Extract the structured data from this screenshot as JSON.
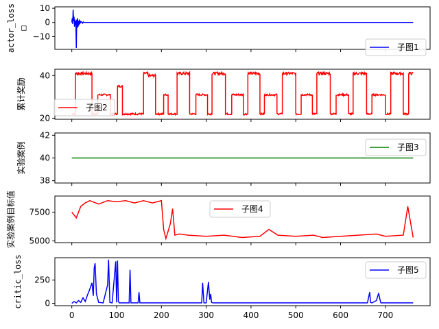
{
  "chart_data": [
    {
      "type": "line",
      "ylabel": "actor_loss\n□",
      "xlim": [
        -37.8,
        799.8
      ],
      "ylim": [
        -19,
        11
      ],
      "yticks": [
        10,
        0,
        -10
      ],
      "ytick_labels": [
        "10",
        "0",
        "−10"
      ],
      "xticks": [
        0,
        100,
        200,
        300,
        400,
        500,
        600,
        700
      ],
      "xtick_labels": [
        "0",
        "100",
        "200",
        "300",
        "400",
        "500",
        "600",
        "700"
      ],
      "legend_location": "lower right",
      "grid": false,
      "series": [
        {
          "name": "子图1",
          "color": "#0000ff",
          "x": [
            0,
            1,
            2,
            3,
            4,
            5,
            6,
            7,
            8,
            9,
            10,
            11,
            12,
            13,
            14,
            15,
            16,
            17,
            18,
            19,
            20,
            22,
            24,
            26,
            28,
            30,
            40,
            60,
            100,
            200,
            300,
            400,
            500,
            600,
            700,
            762
          ],
          "y": [
            0,
            3,
            -1,
            9,
            1,
            4,
            -3,
            2,
            -2,
            1,
            -18,
            2,
            -4,
            3,
            -3,
            1,
            -2,
            2,
            -1,
            1,
            0,
            0.5,
            -0.5,
            0.3,
            0,
            0,
            0,
            0,
            0,
            0,
            0,
            0,
            0,
            0,
            0,
            0
          ]
        }
      ]
    },
    {
      "type": "line",
      "ylabel": "累计奖励",
      "xlim": [
        -37.8,
        799.8
      ],
      "ylim": [
        19.5,
        43
      ],
      "yticks": [
        40,
        20
      ],
      "ytick_labels": [
        "40",
        "20"
      ],
      "xticks": [
        0,
        100,
        200,
        300,
        400,
        500,
        600,
        700
      ],
      "legend_location": "center left",
      "grid": false,
      "series": [
        {
          "name": "子图2",
          "color": "#ff0000",
          "regimes": [
            [
              0,
              8,
              22
            ],
            [
              8,
              45,
              41
            ],
            [
              45,
              58,
              22
            ],
            [
              58,
              86,
              31
            ],
            [
              86,
              102,
              22
            ],
            [
              102,
              113,
              35
            ],
            [
              113,
              120,
              22
            ],
            [
              120,
              160,
              22
            ],
            [
              160,
              170,
              41
            ],
            [
              170,
              187,
              40
            ],
            [
              187,
              205,
              22
            ],
            [
              205,
              215,
              31
            ],
            [
              215,
              235,
              22
            ],
            [
              235,
              263,
              41
            ],
            [
              263,
              277,
              22
            ],
            [
              277,
              303,
              31
            ],
            [
              303,
              313,
              22
            ],
            [
              313,
              343,
              41
            ],
            [
              343,
              357,
              22
            ],
            [
              357,
              383,
              31
            ],
            [
              383,
              393,
              22
            ],
            [
              393,
              420,
              41
            ],
            [
              420,
              430,
              22
            ],
            [
              430,
              458,
              31
            ],
            [
              458,
              470,
              22
            ],
            [
              470,
              500,
              41
            ],
            [
              500,
              512,
              22
            ],
            [
              512,
              537,
              31
            ],
            [
              537,
              547,
              22
            ],
            [
              547,
              577,
              41
            ],
            [
              577,
              590,
              22
            ],
            [
              590,
              618,
              31
            ],
            [
              618,
              628,
              22
            ],
            [
              628,
              658,
              41
            ],
            [
              658,
              670,
              22
            ],
            [
              670,
              700,
              31
            ],
            [
              700,
              712,
              22
            ],
            [
              712,
              740,
              41
            ],
            [
              740,
              752,
              22
            ],
            [
              752,
              762,
              41
            ]
          ]
        }
      ]
    },
    {
      "type": "line",
      "ylabel": "实验案例",
      "xlim": [
        -37.8,
        799.8
      ],
      "ylim": [
        37.8,
        42.2
      ],
      "yticks": [
        42,
        40,
        38
      ],
      "ytick_labels": [
        "42",
        "40",
        "38"
      ],
      "xticks": [
        0,
        100,
        200,
        300,
        400,
        500,
        600,
        700
      ],
      "legend_location": "upper right",
      "grid": false,
      "series": [
        {
          "name": "子图3",
          "color": "#008000",
          "x": [
            0,
            762
          ],
          "y": [
            40,
            40
          ]
        }
      ]
    },
    {
      "type": "line",
      "ylabel": "实验案例目标值",
      "xlim": [
        -37.8,
        799.8
      ],
      "ylim": [
        4850,
        8900
      ],
      "yticks": [
        7500,
        5000
      ],
      "ytick_labels": [
        "7500",
        "5000"
      ],
      "xticks": [
        0,
        100,
        200,
        300,
        400,
        500,
        600,
        700
      ],
      "legend_location": "upper center",
      "grid": false,
      "series": [
        {
          "name": "子图4",
          "color": "#ff0000",
          "x": [
            0,
            10,
            20,
            30,
            40,
            60,
            80,
            100,
            120,
            140,
            160,
            180,
            200,
            205,
            210,
            220,
            225,
            230,
            240,
            260,
            300,
            340,
            380,
            420,
            440,
            460,
            500,
            540,
            560,
            600,
            640,
            680,
            700,
            740,
            750,
            762
          ],
          "y": [
            7500,
            7000,
            8000,
            8300,
            8500,
            8200,
            8500,
            8400,
            8500,
            8300,
            8500,
            8300,
            8500,
            6000,
            5200,
            6500,
            7800,
            5500,
            5600,
            5500,
            5400,
            5500,
            5300,
            5400,
            6000,
            5500,
            5400,
            5500,
            5300,
            5400,
            5500,
            5600,
            5400,
            5500,
            8000,
            5300
          ]
        }
      ]
    },
    {
      "type": "line",
      "ylabel": "critic_loss",
      "xlim": [
        -37.8,
        799.8
      ],
      "ylim": [
        -25,
        490
      ],
      "yticks": [
        250,
        0
      ],
      "ytick_labels": [
        "250",
        "0"
      ],
      "xticks": [
        0,
        100,
        200,
        300,
        400,
        500,
        600,
        700
      ],
      "xtick_labels": [
        "0",
        "100",
        "200",
        "300",
        "400",
        "500",
        "600",
        "700"
      ],
      "legend_location": "upper right",
      "grid": false,
      "series": [
        {
          "name": "子图5",
          "color": "#0000ff",
          "x": [
            0,
            5,
            10,
            15,
            20,
            25,
            30,
            35,
            40,
            45,
            48,
            50,
            52,
            55,
            60,
            70,
            80,
            82,
            85,
            90,
            98,
            100,
            102,
            104,
            106,
            110,
            128,
            130,
            132,
            140,
            148,
            150,
            152,
            160,
            200,
            250,
            290,
            292,
            295,
            300,
            305,
            308,
            310,
            312,
            315,
            320,
            400,
            500,
            600,
            660,
            665,
            667,
            670,
            680,
            685,
            688,
            690,
            700,
            762
          ],
          "y": [
            0,
            20,
            5,
            30,
            10,
            60,
            20,
            90,
            150,
            220,
            80,
            380,
            430,
            100,
            10,
            5,
            200,
            470,
            10,
            5,
            450,
            10,
            460,
            20,
            5,
            5,
            5,
            360,
            5,
            5,
            5,
            120,
            5,
            5,
            5,
            5,
            5,
            220,
            5,
            5,
            230,
            40,
            100,
            10,
            5,
            5,
            5,
            5,
            5,
            5,
            120,
            10,
            5,
            30,
            110,
            40,
            5,
            5,
            5
          ]
        }
      ]
    }
  ]
}
